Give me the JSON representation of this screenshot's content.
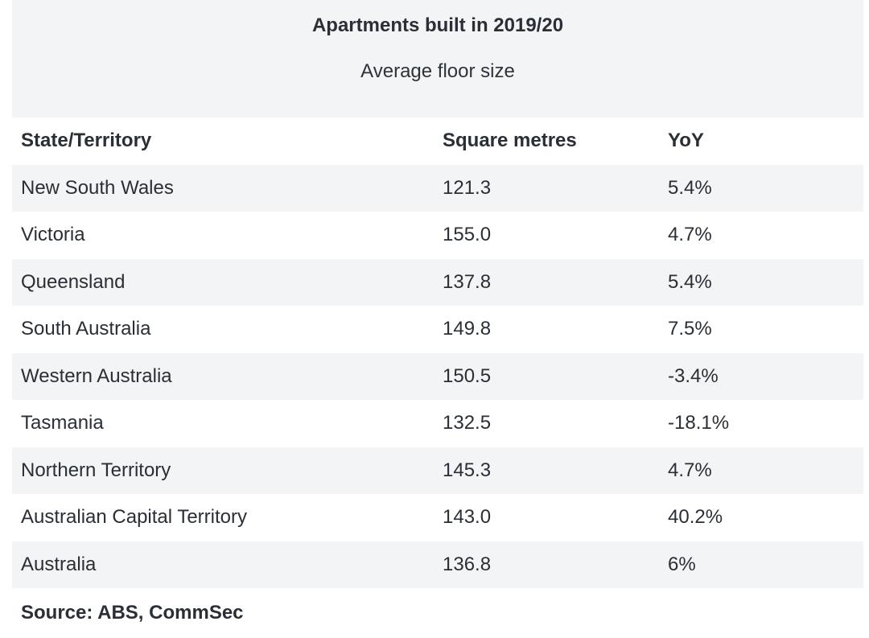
{
  "chart_data": {
    "type": "table",
    "title": "Apartments built in 2019/20",
    "subtitle": "Average floor size",
    "columns": [
      "State/Territory",
      "Square metres",
      "YoY"
    ],
    "rows": [
      [
        "New South Wales",
        "121.3",
        "5.4%"
      ],
      [
        "Victoria",
        "155.0",
        "4.7%"
      ],
      [
        "Queensland",
        "137.8",
        "5.4%"
      ],
      [
        "South Australia",
        "149.8",
        "7.5%"
      ],
      [
        "Western Australia",
        "150.5",
        "-3.4%"
      ],
      [
        "Tasmania",
        "132.5",
        "-18.1%"
      ],
      [
        "Northern Territory",
        "145.3",
        "4.7%"
      ],
      [
        "Australian Capital Territory",
        "143.0",
        "40.2%"
      ],
      [
        "Australia",
        "136.8",
        "6%"
      ]
    ],
    "source": "Source: ABS, CommSec"
  },
  "colors": {
    "header_background": "#f3f4f6",
    "shaded_row": "#f3f4f6",
    "text": "#2a2f36"
  }
}
